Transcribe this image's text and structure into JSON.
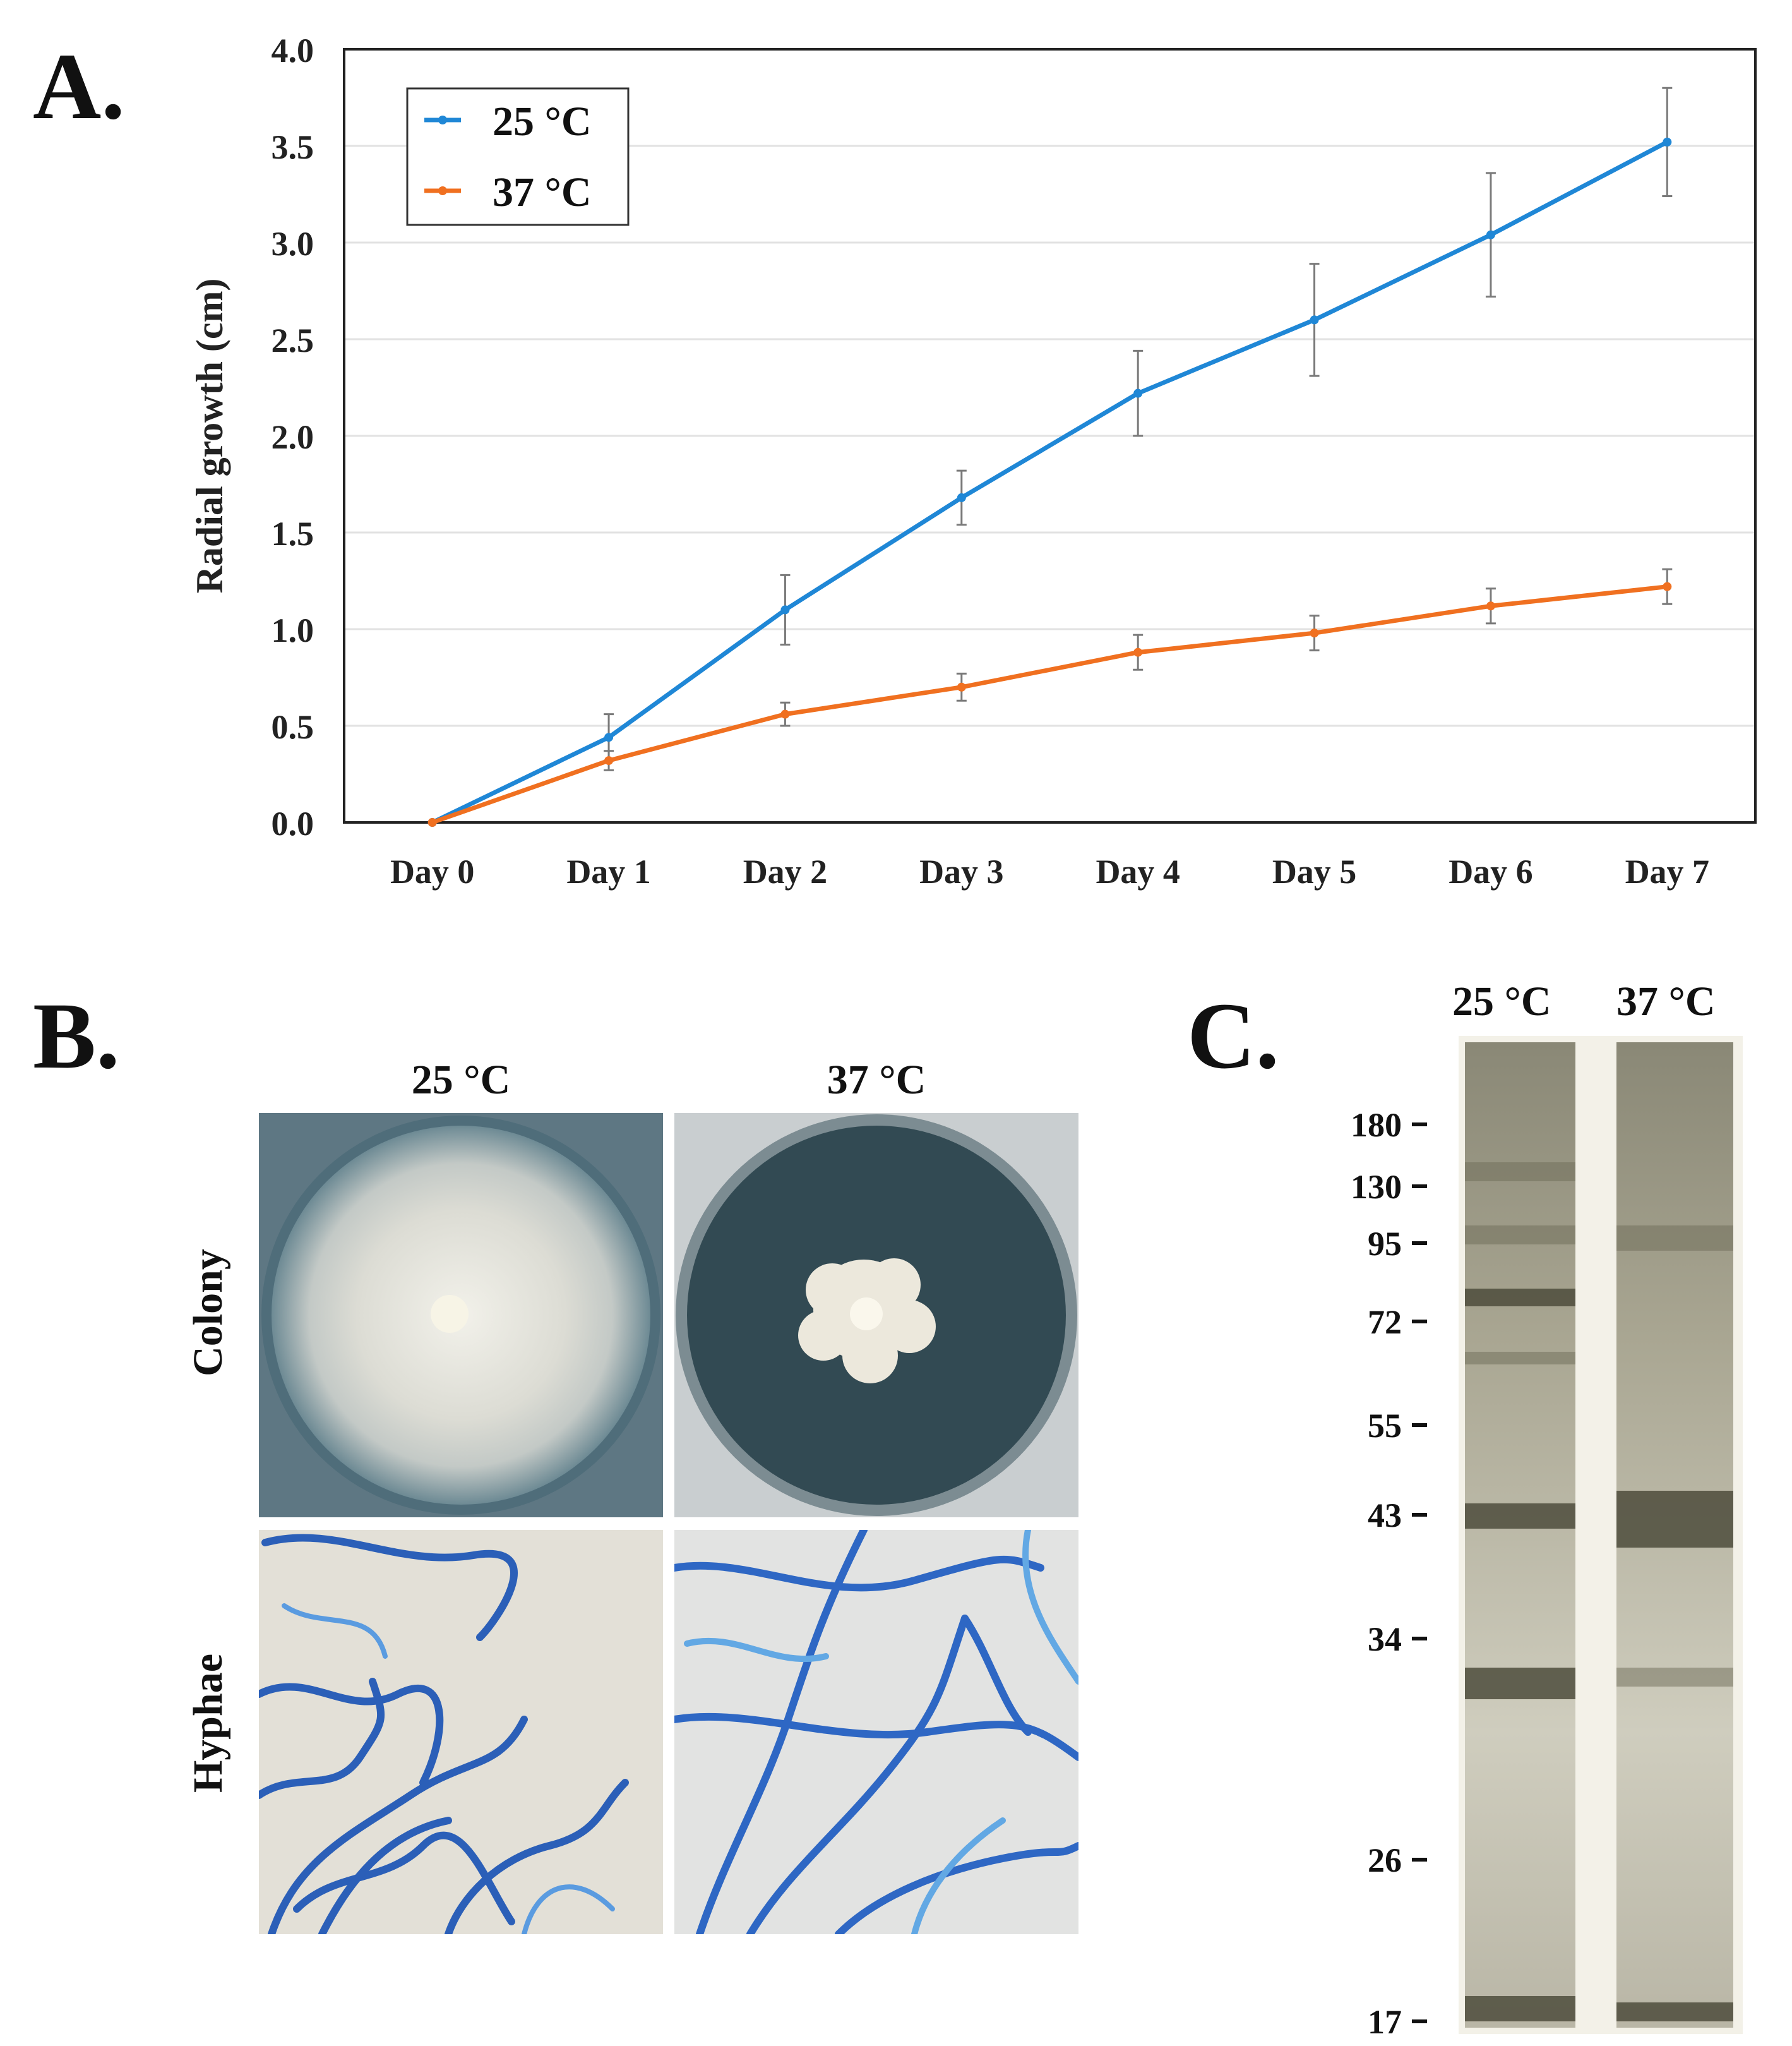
{
  "panel_a": {
    "letter": "A.",
    "chart_data": {
      "type": "line",
      "categories": [
        "Day 0",
        "Day 1",
        "Day 2",
        "Day 3",
        "Day 4",
        "Day 5",
        "Day 6",
        "Day 7"
      ],
      "ylabel": "Radial growth (cm)",
      "xlabel": "",
      "ylim": [
        0,
        4.0
      ],
      "yticks": [
        "0.0",
        "0.5",
        "1.0",
        "1.5",
        "2.0",
        "2.5",
        "3.0",
        "3.5",
        "4.0"
      ],
      "grid": "horizontal",
      "legend_position": "top-left",
      "series": [
        {
          "name": "25 °C",
          "color": "#1f87d6",
          "values": [
            0,
            0.44,
            1.1,
            1.68,
            2.22,
            2.6,
            3.04,
            3.52
          ],
          "error": [
            0,
            0.12,
            0.18,
            0.14,
            0.22,
            0.29,
            0.32,
            0.28
          ]
        },
        {
          "name": "37 °C",
          "color": "#f07020",
          "values": [
            0,
            0.32,
            0.56,
            0.7,
            0.88,
            0.98,
            1.12,
            1.22
          ],
          "error": [
            0,
            0.05,
            0.06,
            0.07,
            0.09,
            0.09,
            0.09,
            0.09
          ]
        }
      ]
    }
  },
  "panel_b": {
    "letter": "B.",
    "columns": [
      "25 °C",
      "37 °C"
    ],
    "rows": [
      "Colony",
      "Hyphae"
    ]
  },
  "panel_c": {
    "letter": "C.",
    "lanes": [
      "25 °C",
      "37 °C"
    ],
    "markers": [
      "180",
      "130",
      "95",
      "72",
      "55",
      "43",
      "34",
      "26",
      "17"
    ]
  }
}
